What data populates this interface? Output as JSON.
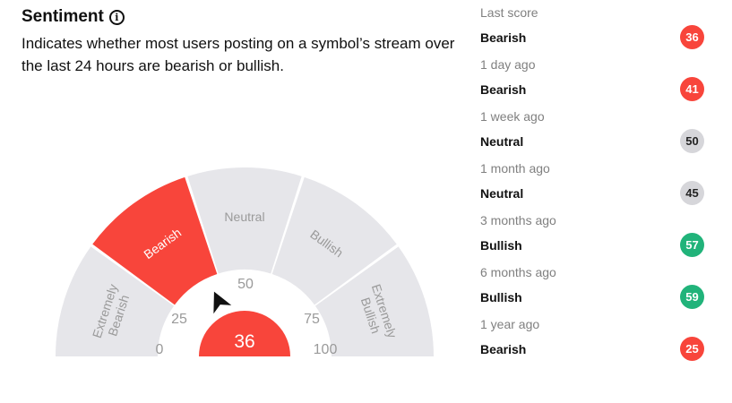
{
  "header": {
    "title": "Sentiment",
    "info_icon": "info-icon",
    "description": "Indicates whether most users posting on a symbol’s stream over the last 24 hours are bearish or bullish."
  },
  "gauge": {
    "segments": [
      {
        "key": "extremely-bearish",
        "lines": [
          "Extremely",
          "Bearish"
        ],
        "active": false
      },
      {
        "key": "bearish",
        "lines": [
          "Bearish"
        ],
        "active": true
      },
      {
        "key": "neutral",
        "lines": [
          "Neutral"
        ],
        "active": false
      },
      {
        "key": "bullish",
        "lines": [
          "Bullish"
        ],
        "active": false
      },
      {
        "key": "extremely-bullish",
        "lines": [
          "Extremely",
          "Bullish"
        ],
        "active": false
      }
    ],
    "ticks": [
      "0",
      "25",
      "50",
      "75",
      "100"
    ],
    "score": 36,
    "colors": {
      "active": "#f8453b",
      "inactive": "#e6e6ea",
      "inactive_text": "#9a9a9a",
      "active_text": "#ffffff",
      "needle": "#111111"
    }
  },
  "history": {
    "items": [
      {
        "period": "Last score",
        "label": "Bearish",
        "score": "36",
        "color": "#f8453b"
      },
      {
        "period": "1 day ago",
        "label": "Bearish",
        "score": "41",
        "color": "#f8453b"
      },
      {
        "period": "1 week ago",
        "label": "Neutral",
        "score": "50",
        "color": "#d6d6da"
      },
      {
        "period": "1 month ago",
        "label": "Neutral",
        "score": "45",
        "color": "#d6d6da"
      },
      {
        "period": "3 months ago",
        "label": "Bullish",
        "score": "57",
        "color": "#21b37a"
      },
      {
        "period": "6 months ago",
        "label": "Bullish",
        "score": "59",
        "color": "#21b37a"
      },
      {
        "period": "1 year ago",
        "label": "Bearish",
        "score": "25",
        "color": "#f8453b"
      }
    ]
  }
}
